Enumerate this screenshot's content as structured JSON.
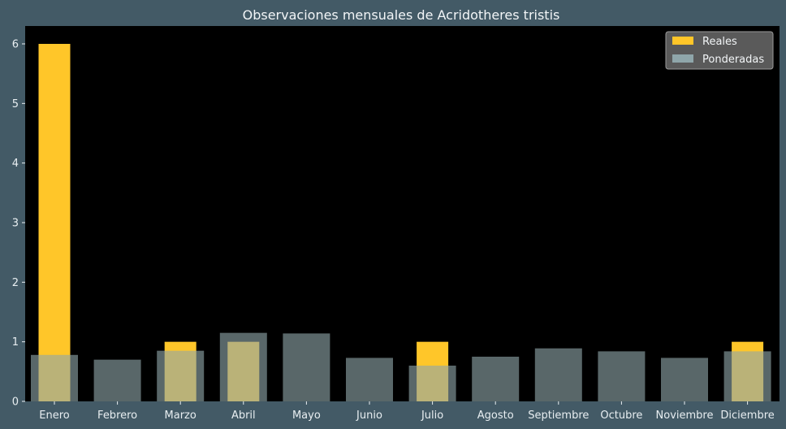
{
  "chart_data": {
    "type": "bar",
    "title": "Observaciones mensuales de Acridotheres tristis",
    "xlabel": "",
    "ylabel": "",
    "categories": [
      "Enero",
      "Febrero",
      "Marzo",
      "Abril",
      "Mayo",
      "Junio",
      "Julio",
      "Agosto",
      "Septiembre",
      "Octubre",
      "Noviembre",
      "Diciembre"
    ],
    "series": [
      {
        "name": "Reales",
        "values": [
          6,
          0,
          1,
          1,
          0,
          0,
          1,
          0,
          0,
          0,
          0,
          1
        ]
      },
      {
        "name": "Ponderadas",
        "values": [
          0.78,
          0.7,
          0.85,
          1.15,
          1.14,
          0.73,
          0.6,
          0.75,
          0.89,
          0.84,
          0.73,
          0.84
        ]
      }
    ],
    "ylim": [
      0,
      6.3
    ],
    "yticks": [
      0,
      1,
      2,
      3,
      4,
      5,
      6
    ],
    "grid": false,
    "legend": "top-right",
    "colors": {
      "Reales": "#ffc629",
      "Ponderadas": "#8fa6aa",
      "plot_background": "#000000",
      "figure_background": "#435a66"
    }
  }
}
